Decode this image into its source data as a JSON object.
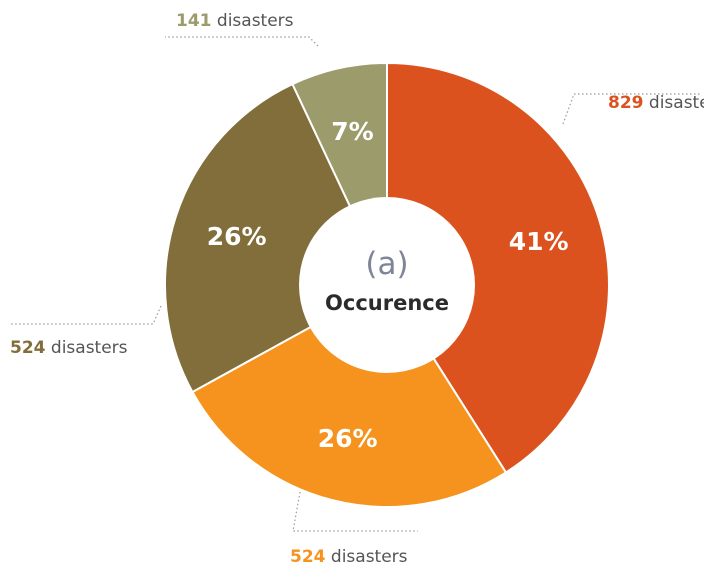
{
  "chart_data": {
    "type": "pie",
    "donut": true,
    "center_label": "(a)",
    "center_title": "Occurence",
    "slices": [
      {
        "value": 41,
        "label": "41%",
        "count": "829",
        "unit": "disasters",
        "color": "#dc521f"
      },
      {
        "value": 26,
        "label": "26%",
        "count": "524",
        "unit": "disasters",
        "color": "#f5931e"
      },
      {
        "value": 26,
        "label": "26%",
        "count": "524",
        "unit": "disasters",
        "color": "#816e3a"
      },
      {
        "value": 7,
        "label": "7%",
        "count": "141",
        "unit": "disasters",
        "color": "#9c9b6b"
      }
    ],
    "legend": "none"
  }
}
